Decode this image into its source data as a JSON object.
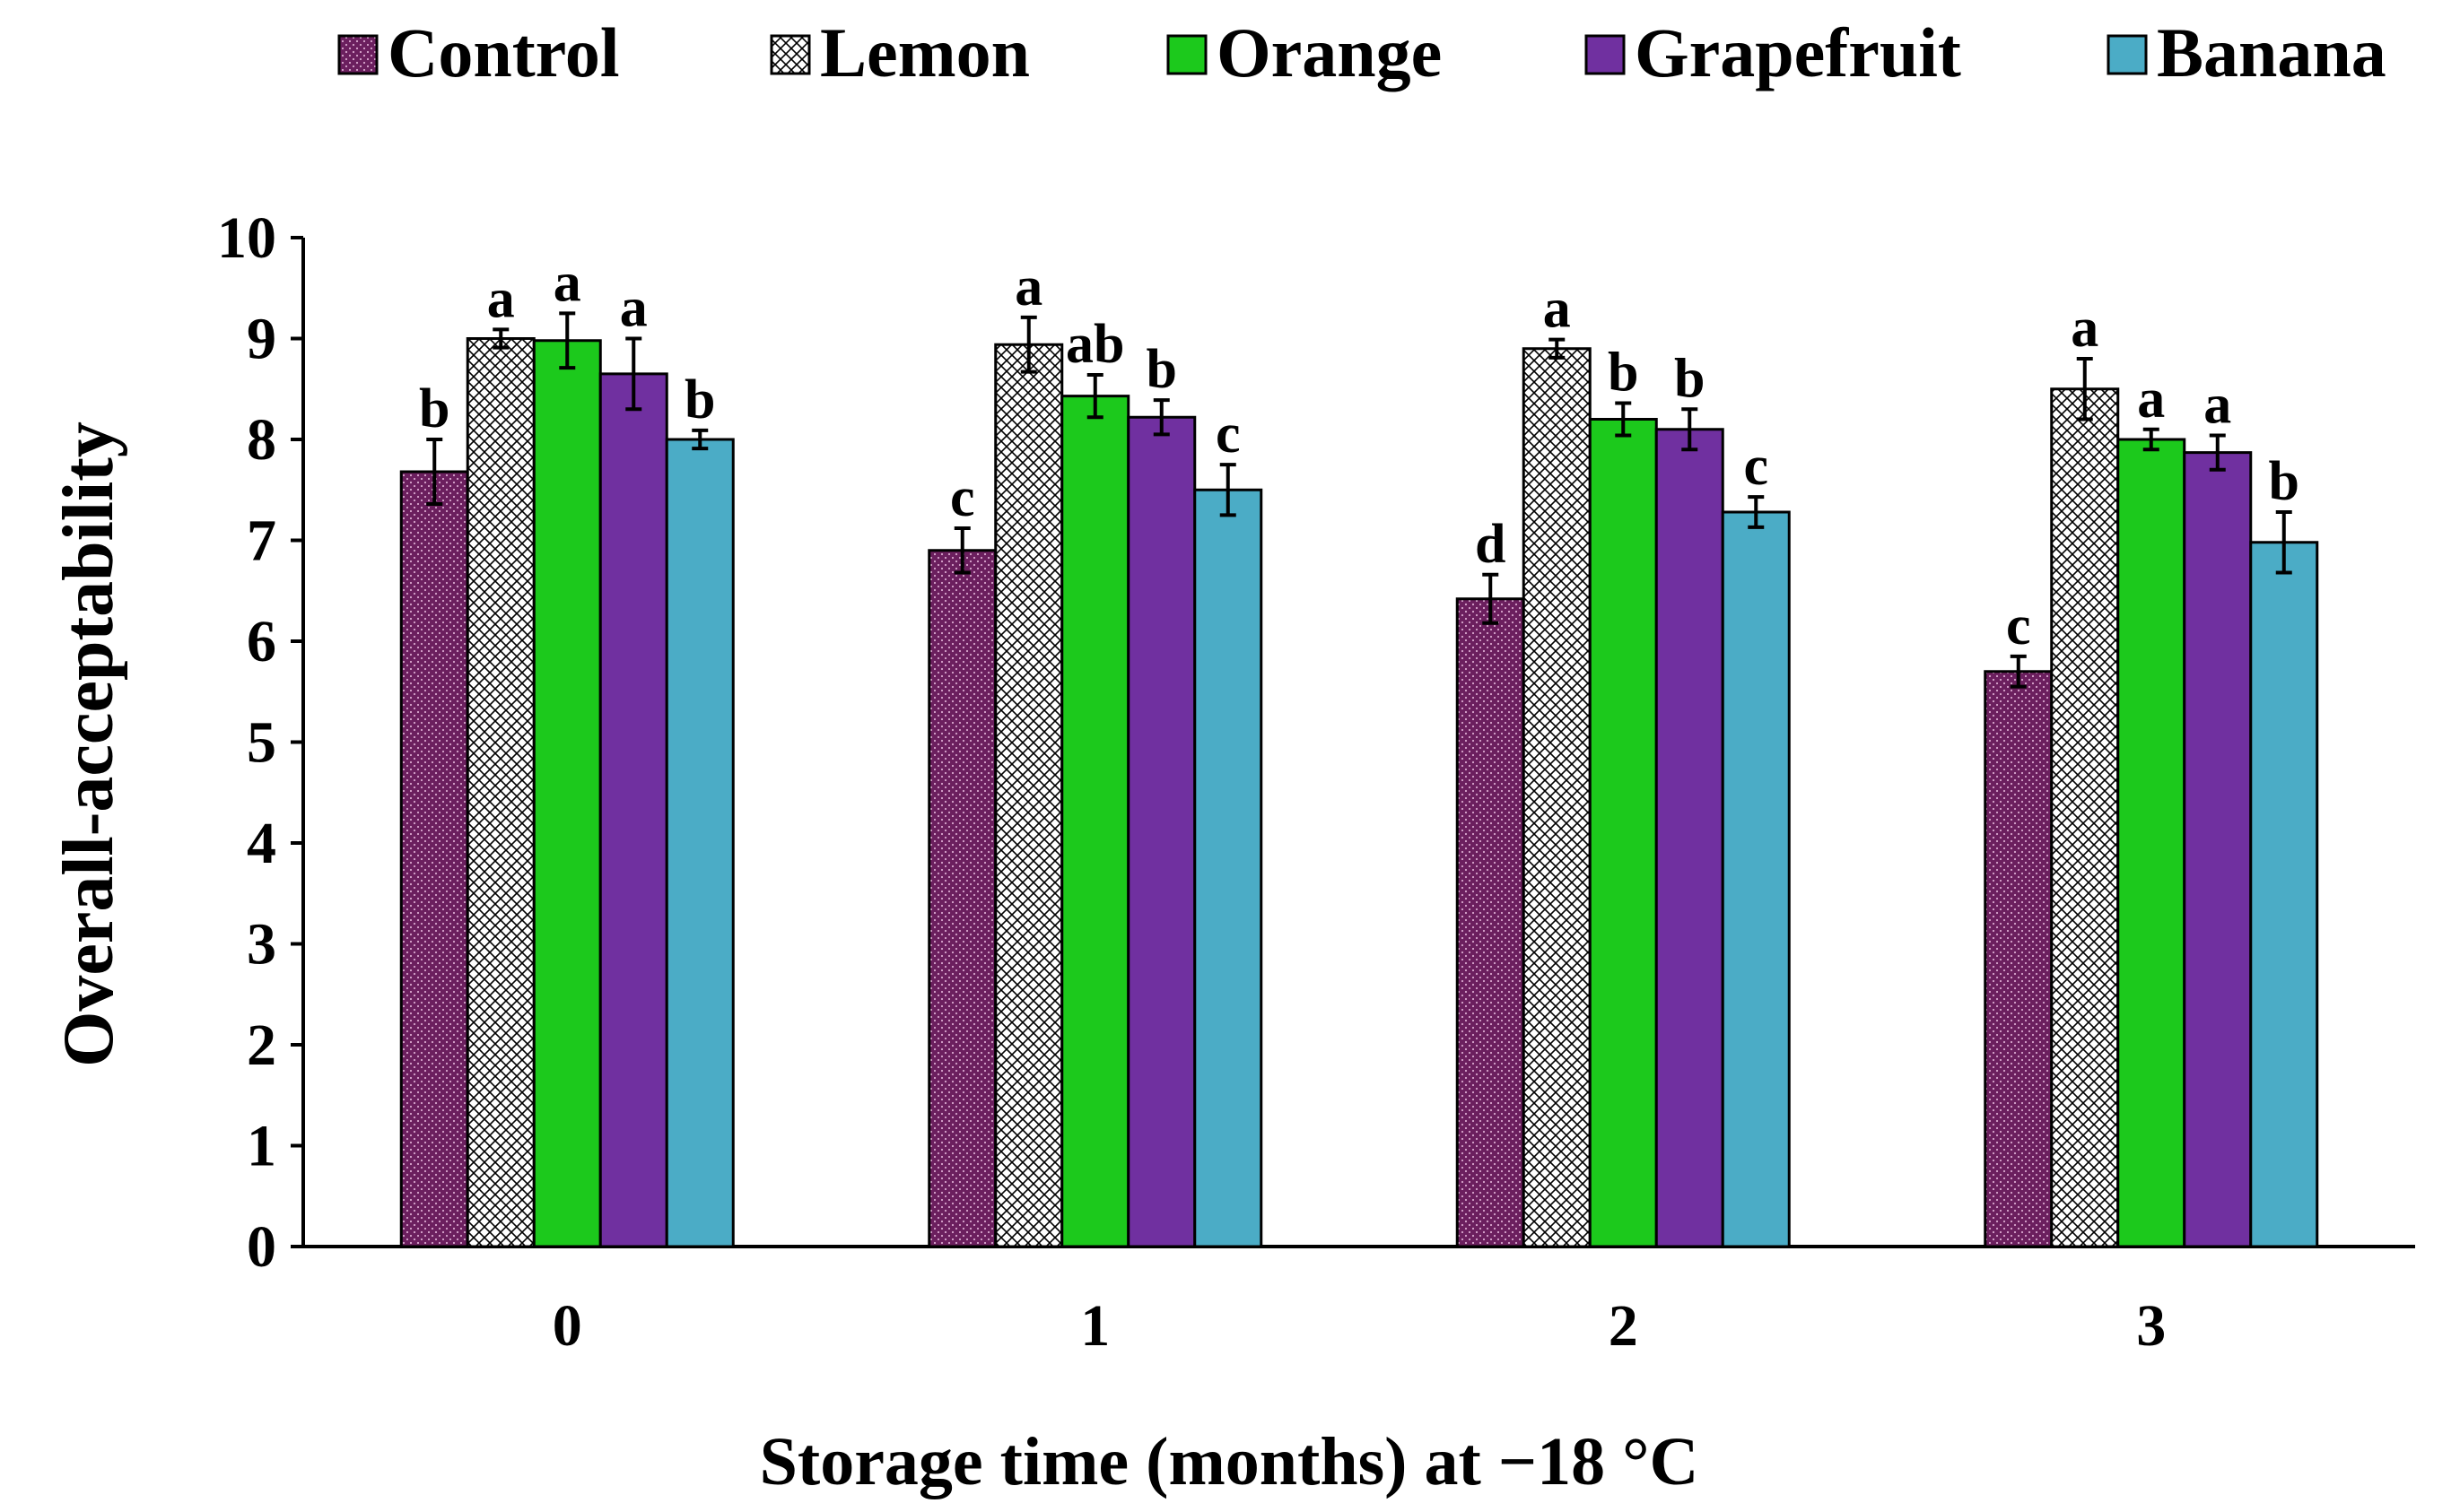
{
  "chart_data": {
    "type": "bar",
    "title": "",
    "xlabel": "Storage time (months) at −18 °C",
    "ylabel": "Overall-acceptability",
    "ylim": [
      0,
      10
    ],
    "yticks": [
      "0",
      "1",
      "2",
      "3",
      "4",
      "5",
      "6",
      "7",
      "8",
      "9",
      "10"
    ],
    "categories": [
      "0",
      "1",
      "2",
      "3"
    ],
    "legend_position": "top",
    "grid": false,
    "series": [
      {
        "name": "Control",
        "color": "#6B1F5E",
        "pattern": "dots",
        "values": [
          7.68,
          6.9,
          6.42,
          5.7
        ],
        "errors": [
          0.32,
          0.22,
          0.24,
          0.15
        ],
        "labels": [
          "b",
          "c",
          "d",
          "c"
        ]
      },
      {
        "name": "Lemon",
        "color": "#FFFFFF",
        "pattern": "crosshatch",
        "values": [
          9.0,
          8.94,
          8.9,
          8.5
        ],
        "errors": [
          0.09,
          0.27,
          0.09,
          0.3
        ],
        "labels": [
          "a",
          "a",
          "a",
          "a"
        ]
      },
      {
        "name": "Orange",
        "color": "#1CC91C",
        "pattern": "solid",
        "values": [
          8.98,
          8.43,
          8.2,
          8.0
        ],
        "errors": [
          0.27,
          0.21,
          0.16,
          0.1
        ],
        "labels": [
          "a",
          "ab",
          "b",
          "a"
        ]
      },
      {
        "name": "Grapefruit",
        "color": "#7030A0",
        "pattern": "solid",
        "values": [
          8.65,
          8.22,
          8.1,
          7.87
        ],
        "errors": [
          0.35,
          0.17,
          0.2,
          0.17
        ],
        "labels": [
          "a",
          "b",
          "b",
          "a"
        ]
      },
      {
        "name": "Banana",
        "color": "#4BACC6",
        "pattern": "solid",
        "values": [
          8.0,
          7.5,
          7.28,
          6.98
        ],
        "errors": [
          0.09,
          0.25,
          0.15,
          0.3
        ],
        "labels": [
          "b",
          "c",
          "c",
          "b"
        ]
      }
    ]
  }
}
